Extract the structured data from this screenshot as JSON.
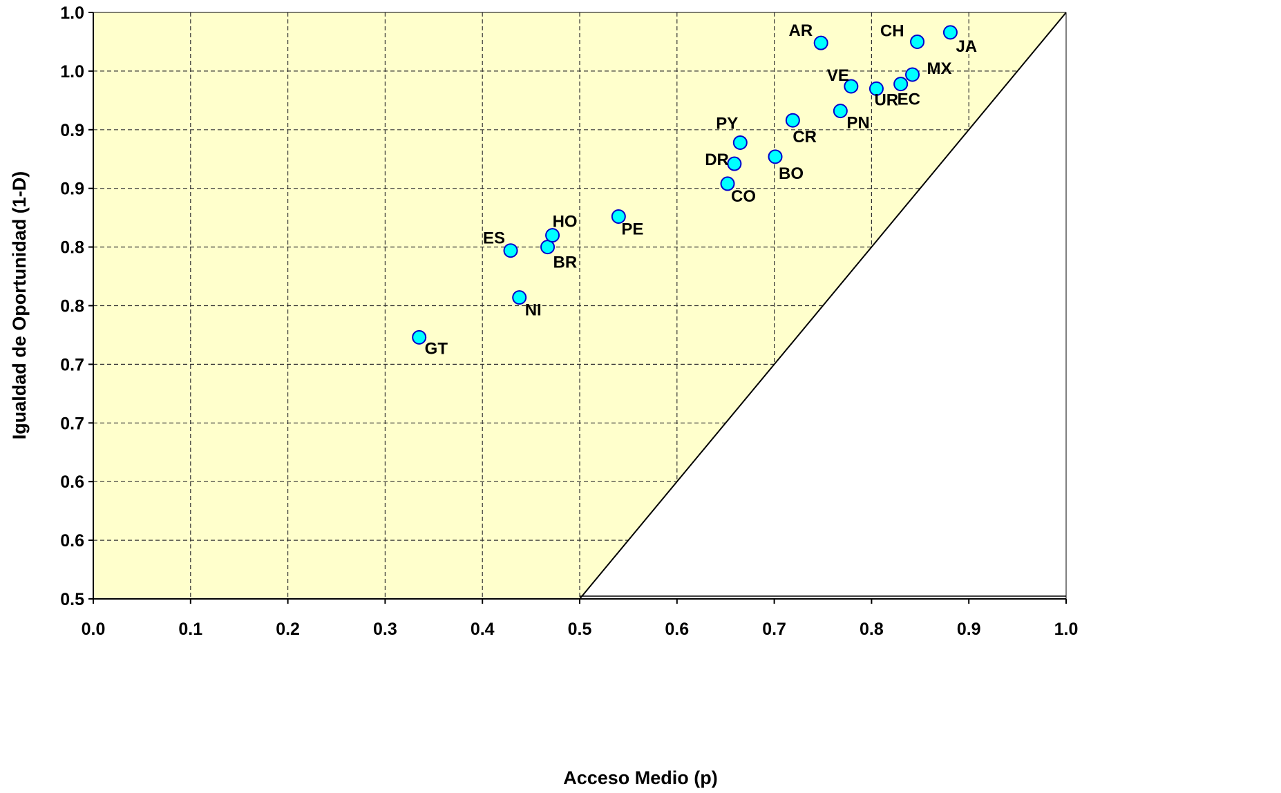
{
  "chart_data": {
    "type": "scatter",
    "xlabel": "Acceso Medio (p)",
    "ylabel": "Igualdad de Oportunidad (1-D)",
    "xlim": [
      0.0,
      1.0
    ],
    "ylim": [
      0.5,
      1.0
    ],
    "x_ticks": [
      "0.0",
      "0.1",
      "0.2",
      "0.3",
      "0.4",
      "0.5",
      "0.6",
      "0.7",
      "0.8",
      "0.9",
      "1.0"
    ],
    "y_ticks": [
      "0.5",
      "0.6",
      "0.6",
      "0.7",
      "0.7",
      "0.8",
      "0.8",
      "0.9",
      "0.9",
      "1.0",
      "1.0"
    ],
    "grid": true,
    "shaded_region": "feasible region above diagonal from (0.5, 0.5) to (1.0, 1.0)",
    "colors": {
      "region_fill": "#FFFFCC",
      "marker_fill": "#00FFFF",
      "marker_edge": "#0000CC",
      "grid": "#333333"
    },
    "points": [
      {
        "label": "GT",
        "x": 0.335,
        "y": 0.723
      },
      {
        "label": "NI",
        "x": 0.438,
        "y": 0.757
      },
      {
        "label": "ES",
        "x": 0.429,
        "y": 0.797
      },
      {
        "label": "BR",
        "x": 0.467,
        "y": 0.8
      },
      {
        "label": "HO",
        "x": 0.472,
        "y": 0.81
      },
      {
        "label": "PE",
        "x": 0.54,
        "y": 0.826
      },
      {
        "label": "CO",
        "x": 0.652,
        "y": 0.854
      },
      {
        "label": "DR",
        "x": 0.659,
        "y": 0.871
      },
      {
        "label": "BO",
        "x": 0.701,
        "y": 0.877
      },
      {
        "label": "PY",
        "x": 0.665,
        "y": 0.889
      },
      {
        "label": "CR",
        "x": 0.719,
        "y": 0.908
      },
      {
        "label": "PN",
        "x": 0.768,
        "y": 0.916
      },
      {
        "label": "VE",
        "x": 0.779,
        "y": 0.937
      },
      {
        "label": "UR",
        "x": 0.805,
        "y": 0.935
      },
      {
        "label": "EC",
        "x": 0.83,
        "y": 0.939
      },
      {
        "label": "MX",
        "x": 0.842,
        "y": 0.947
      },
      {
        "label": "AR",
        "x": 0.748,
        "y": 0.974
      },
      {
        "label": "CH",
        "x": 0.847,
        "y": 0.975
      },
      {
        "label": "JA",
        "x": 0.881,
        "y": 0.983
      }
    ]
  }
}
